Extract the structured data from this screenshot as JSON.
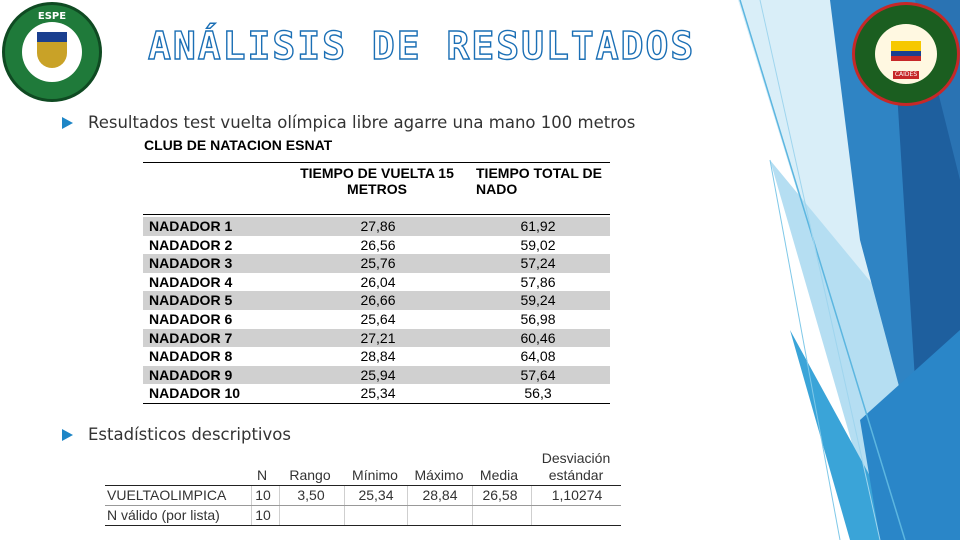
{
  "slide": {
    "title": "ANÁLISIS DE RESULTADOS",
    "bullets": [
      "Resultados test vuelta olímpica libre agarre una mano 100 metros",
      "Estadísticos descriptivos"
    ],
    "logo_left_text": "ESPE",
    "logo_right_text": "CAIDES",
    "accent_color": "#1e86c6",
    "title_outline_color": "#1b6fb5"
  },
  "results_table": {
    "club_title": "CLUB DE NATACION ESNAT",
    "col1_header": "TIEMPO DE VUELTA 15 METROS",
    "col2_header": "TIEMPO TOTAL DE NADO",
    "rows": [
      {
        "name": "NADADOR 1",
        "lap": "27,86",
        "total": "61,92"
      },
      {
        "name": "NADADOR 2",
        "lap": "26,56",
        "total": "59,02"
      },
      {
        "name": "NADADOR 3",
        "lap": "25,76",
        "total": "57,24"
      },
      {
        "name": "NADADOR 4",
        "lap": "26,04",
        "total": "57,86"
      },
      {
        "name": "NADADOR 5",
        "lap": "26,66",
        "total": "59,24"
      },
      {
        "name": "NADADOR 6",
        "lap": "25,64",
        "total": "56,98"
      },
      {
        "name": "NADADOR 7",
        "lap": "27,21",
        "total": "60,46"
      },
      {
        "name": "NADADOR 8",
        "lap": "28,84",
        "total": "64,08"
      },
      {
        "name": "NADADOR 9",
        "lap": "25,94",
        "total": "57,64"
      },
      {
        "name": "NADADOR 10",
        "lap": "25,34",
        "total": "56,3"
      }
    ]
  },
  "stats_table": {
    "headers": {
      "n": "N",
      "rango": "Rango",
      "minimo": "Mínimo",
      "maximo": "Máximo",
      "media": "Media",
      "desviacion": "Desviación estándar"
    },
    "rows": [
      {
        "label": "VUELTAOLIMPICA",
        "n": "10",
        "rango": "3,50",
        "minimo": "25,34",
        "maximo": "28,84",
        "media": "26,58",
        "desviacion": "1,10274"
      },
      {
        "label": "N válido (por lista)",
        "n": "10",
        "rango": "",
        "minimo": "",
        "maximo": "",
        "media": "",
        "desviacion": ""
      }
    ]
  }
}
